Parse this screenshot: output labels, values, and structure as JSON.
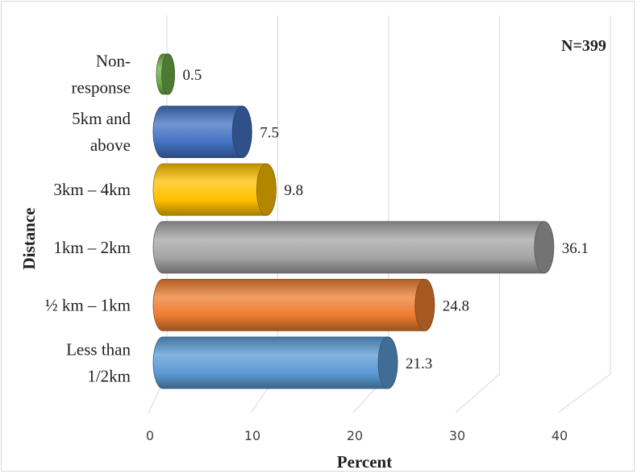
{
  "chart_data": {
    "type": "bar",
    "orientation": "horizontal",
    "categories": [
      [
        "Less than",
        "1/2km"
      ],
      [
        "½ km – 1km"
      ],
      [
        "1km – 2km"
      ],
      [
        "3km – 4km"
      ],
      [
        "5km and",
        "above"
      ],
      [
        "Non-",
        "response"
      ]
    ],
    "values": [
      21.3,
      24.8,
      36.1,
      9.8,
      7.5,
      0.5
    ],
    "value_labels": [
      "21.3",
      "24.8",
      "36.1",
      "9.8",
      "7.5",
      "0.5"
    ],
    "colors": [
      "#5b9bd5",
      "#ed7d31",
      "#a5a5a5",
      "#ffc000",
      "#4472c4",
      "#70ad47"
    ],
    "xlabel": "Percent",
    "ylabel": "Distance",
    "xlim": [
      0,
      40
    ],
    "xticks": [
      "0",
      "10",
      "20",
      "30",
      "40"
    ],
    "annotation": "N=399",
    "grid": true,
    "style": "3d-cylinder"
  }
}
